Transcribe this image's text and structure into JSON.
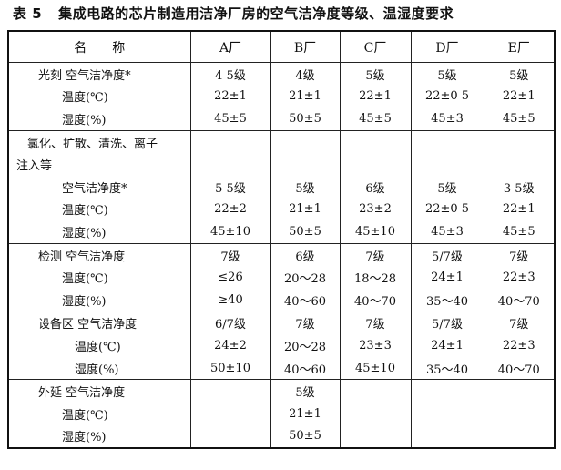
{
  "title": {
    "number": "表 5",
    "text": "集成电路的芯片制造用洁净厂房的空气洁净度等级、温湿度要求"
  },
  "header": [
    "名　　称",
    "A厂",
    "B厂",
    "C厂",
    "D厂",
    "E厂"
  ],
  "rows": [
    {
      "name": "光刻 空气洁净度*",
      "values": [
        "4 5级",
        "4级",
        "5级",
        "5级",
        "5级"
      ]
    },
    {
      "name": "温度(℃)",
      "values": [
        "22±1",
        "21±1",
        "22±1",
        "22±0 5",
        "22±1"
      ]
    },
    {
      "name": "湿度(%)",
      "values": [
        "45±5",
        "50±5",
        "45±5",
        "45±3",
        "45±5"
      ]
    },
    {
      "name": "氯化、扩散、清洗、离子",
      "values": [
        "",
        "",
        "",
        "",
        ""
      ]
    },
    {
      "name": "注入等",
      "values": [
        "",
        "",
        "",
        "",
        ""
      ]
    },
    {
      "name": "空气洁净度*",
      "values": [
        "5 5级",
        "5级",
        "6级",
        "5级",
        "3 5级"
      ]
    },
    {
      "name": "温度(℃)",
      "values": [
        "22±2",
        "21±1",
        "23±2",
        "22±0 5",
        "22±1"
      ]
    },
    {
      "name": "湿度(%)",
      "values": [
        "45±10",
        "50±5",
        "45±10",
        "45±3",
        "45±5"
      ]
    },
    {
      "name": "检测 空气洁净度",
      "values": [
        "7级",
        "6级",
        "7级",
        "5/7级",
        "7级"
      ]
    },
    {
      "name": "温度(℃)",
      "values": [
        "≤26",
        "20～28",
        "18～28",
        "24±1",
        "22±3"
      ]
    },
    {
      "name": "湿度(%)",
      "values": [
        "≥40",
        "40～60",
        "40～70",
        "35～40",
        "40～70"
      ]
    },
    {
      "name": "设备区 空气洁净度",
      "values": [
        "6/7级",
        "7级",
        "7级",
        "5/7级",
        "7级"
      ]
    },
    {
      "name": "温度(℃)",
      "values": [
        "24±2",
        "20～28",
        "23±3",
        "24±1",
        "22±3"
      ]
    },
    {
      "name": "湿度(%)",
      "values": [
        "50±10",
        "40～60",
        "45±10",
        "35～40",
        "40～70"
      ]
    },
    {
      "name": "外延 空气洁净度",
      "values": [
        "",
        "5级",
        "",
        "",
        ""
      ]
    },
    {
      "name": "温度(℃)",
      "values": [
        "—",
        "21±1",
        "—",
        "—",
        "—"
      ]
    },
    {
      "name": "湿度(%)",
      "values": [
        "",
        "50±5",
        "",
        "",
        ""
      ]
    }
  ]
}
